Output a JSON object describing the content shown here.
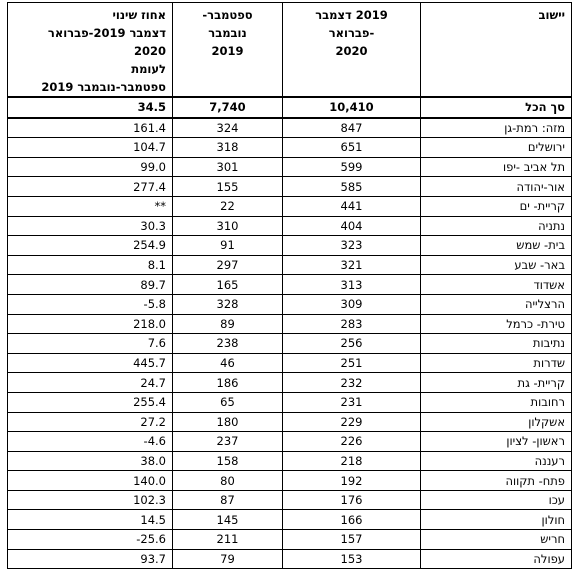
{
  "headers": {
    "settlement": "יישוב",
    "dec_feb": [
      "2019 דצמבר",
      "-פברואר",
      "2020"
    ],
    "sep_nov": [
      "ספטמבר-",
      "נובמבר",
      "2019"
    ],
    "pct_change": [
      "אחוז שינוי",
      "דצמבר 2019-פברואר 2020",
      "לעומת",
      "ספטמבר-נובמבר 2019"
    ]
  },
  "total": {
    "name": "סך הכל",
    "dec_feb": "10,410",
    "sep_nov": "7,740",
    "pct": "34.5"
  },
  "rows": [
    {
      "name": "מזה: רמת-גן",
      "dec_feb": "847",
      "sep_nov": "324",
      "pct": "161.4"
    },
    {
      "name": "ירושלים",
      "dec_feb": "651",
      "sep_nov": "318",
      "pct": "104.7"
    },
    {
      "name": "תל אביב -יפו",
      "dec_feb": "599",
      "sep_nov": "301",
      "pct": "99.0"
    },
    {
      "name": "אור-יהודה",
      "dec_feb": "585",
      "sep_nov": "155",
      "pct": "277.4"
    },
    {
      "name": "קריית- ים",
      "dec_feb": "441",
      "sep_nov": "22",
      "pct": "**"
    },
    {
      "name": "נתניה",
      "dec_feb": "404",
      "sep_nov": "310",
      "pct": "30.3"
    },
    {
      "name": "בית- שמש",
      "dec_feb": "323",
      "sep_nov": "91",
      "pct": "254.9"
    },
    {
      "name": "באר- שבע",
      "dec_feb": "321",
      "sep_nov": "297",
      "pct": "8.1"
    },
    {
      "name": "אשדוד",
      "dec_feb": "313",
      "sep_nov": "165",
      "pct": "89.7"
    },
    {
      "name": "הרצלייה",
      "dec_feb": "309",
      "sep_nov": "328",
      "pct": "5.8-"
    },
    {
      "name": "טירת- כרמל",
      "dec_feb": "283",
      "sep_nov": "89",
      "pct": "218.0"
    },
    {
      "name": "נתיבות",
      "dec_feb": "256",
      "sep_nov": "238",
      "pct": "7.6"
    },
    {
      "name": "שדרות",
      "dec_feb": "251",
      "sep_nov": "46",
      "pct": "445.7"
    },
    {
      "name": "קריית- גת",
      "dec_feb": "232",
      "sep_nov": "186",
      "pct": "24.7"
    },
    {
      "name": "רחובות",
      "dec_feb": "231",
      "sep_nov": "65",
      "pct": "255.4"
    },
    {
      "name": "אשקלון",
      "dec_feb": "229",
      "sep_nov": "180",
      "pct": "27.2"
    },
    {
      "name": "ראשון- לציון",
      "dec_feb": "226",
      "sep_nov": "237",
      "pct": "4.6-"
    },
    {
      "name": "רעננה",
      "dec_feb": "218",
      "sep_nov": "158",
      "pct": "38.0"
    },
    {
      "name": "פתח- תקווה",
      "dec_feb": "192",
      "sep_nov": "80",
      "pct": "140.0"
    },
    {
      "name": "עכו",
      "dec_feb": "176",
      "sep_nov": "87",
      "pct": "102.3"
    },
    {
      "name": "חולון",
      "dec_feb": "166",
      "sep_nov": "145",
      "pct": "14.5"
    },
    {
      "name": "חריש",
      "dec_feb": "157",
      "sep_nov": "211",
      "pct": "25.6-"
    },
    {
      "name": "עפולה",
      "dec_feb": "153",
      "sep_nov": "79",
      "pct": "93.7"
    }
  ]
}
